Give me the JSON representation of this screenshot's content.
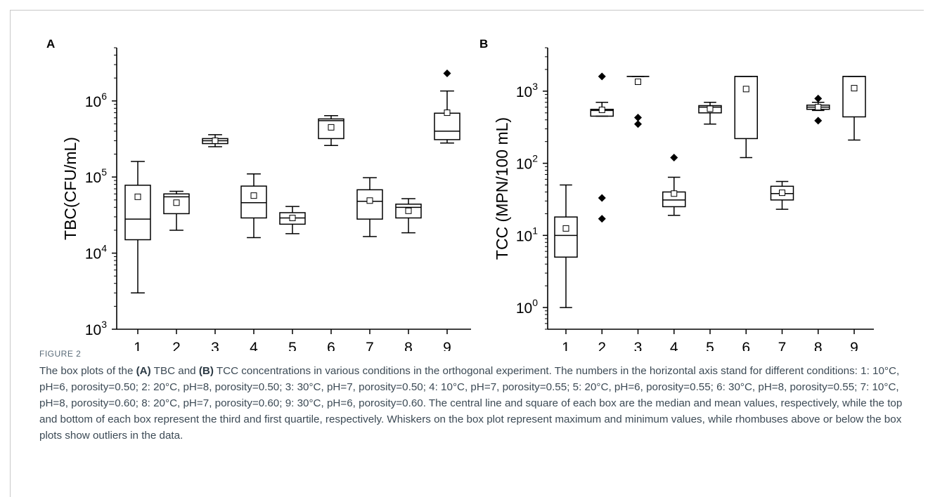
{
  "figure_label": "FIGURE 2",
  "caption": {
    "part1": "The box plots of the ",
    "bold_a": "(A)",
    "part2": " TBC and ",
    "bold_b": "(B)",
    "part3": " TCC concentrations in various conditions in the orthogonal experiment. The numbers in the horizontal axis stand for different conditions: 1: 10°C, pH=6, porosity=0.50; 2: 20°C, pH=8, porosity=0.50; 3: 30°C, pH=7, porosity=0.50; 4: 10°C, pH=7, porosity=0.55; 5: 20°C, pH=6, porosity=0.55; 6: 30°C, pH=8, porosity=0.55; 7: 10°C, pH=8, porosity=0.60; 8: 20°C, pH=7, porosity=0.60; 9: 30°C, pH=6, porosity=0.60. The central line and square of each box are the median and mean values, respectively, while the top and bottom of each box represent the third and first quartile, respectively. Whiskers on the box plot represent maximum and minimum values, while rhombuses above or below the box plots show outliers in the data."
  },
  "chart_data": [
    {
      "type": "box",
      "panel": "A",
      "ylabel": "TBC(CFU/mL)",
      "xlabel": "",
      "yscale": "log",
      "ylim": [
        1000,
        5000000
      ],
      "ytick_exponents": [
        3,
        4,
        5,
        6
      ],
      "categories": [
        "1",
        "2",
        "3",
        "4",
        "5",
        "6",
        "7",
        "8",
        "9"
      ],
      "boxes": [
        {
          "min": 3000,
          "q1": 15000,
          "median": 28000,
          "q3": 78000,
          "max": 160000,
          "mean": 55000,
          "outliers": []
        },
        {
          "min": 20000,
          "q1": 33000,
          "median": 55000,
          "q3": 60000,
          "max": 65000,
          "mean": 46000,
          "outliers": []
        },
        {
          "min": 250000,
          "q1": 275000,
          "median": 300000,
          "q3": 320000,
          "max": 360000,
          "mean": 300000,
          "outliers": []
        },
        {
          "min": 16000,
          "q1": 29000,
          "median": 46000,
          "q3": 76000,
          "max": 110000,
          "mean": 57000,
          "outliers": []
        },
        {
          "min": 18000,
          "q1": 24000,
          "median": 29000,
          "q3": 34000,
          "max": 41000,
          "mean": 29000,
          "outliers": []
        },
        {
          "min": 260000,
          "q1": 320000,
          "median": 550000,
          "q3": 580000,
          "max": 640000,
          "mean": 450000,
          "outliers": []
        },
        {
          "min": 16500,
          "q1": 28000,
          "median": 48000,
          "q3": 68000,
          "max": 98000,
          "mean": 49000,
          "outliers": []
        },
        {
          "min": 18500,
          "q1": 29000,
          "median": 40000,
          "q3": 44000,
          "max": 52000,
          "mean": 36000,
          "outliers": []
        },
        {
          "min": 280000,
          "q1": 310000,
          "median": 400000,
          "q3": 690000,
          "max": 1350000,
          "mean": 700000,
          "outliers": [
            2300000
          ]
        }
      ]
    },
    {
      "type": "box",
      "panel": "B",
      "ylabel": "TCC (MPN/100 mL)",
      "xlabel": "",
      "yscale": "log",
      "ylim": [
        0.5,
        4000
      ],
      "ytick_exponents": [
        0,
        1,
        2,
        3
      ],
      "categories": [
        "1",
        "2",
        "3",
        "4",
        "5",
        "6",
        "7",
        "8",
        "9"
      ],
      "boxes": [
        {
          "min": 1,
          "q1": 5,
          "median": 10,
          "q3": 18,
          "max": 50,
          "mean": 12.5,
          "outliers": []
        },
        {
          "min": 450,
          "q1": 450,
          "median": 540,
          "q3": 560,
          "max": 700,
          "mean": 550,
          "outliers": [
            1600,
            33,
            17
          ]
        },
        {
          "min": 1600,
          "q1": 1600,
          "median": 1600,
          "q3": 1600,
          "max": 1600,
          "mean": 1350,
          "outliers": [
            430,
            350
          ]
        },
        {
          "min": 19,
          "q1": 25,
          "median": 31,
          "q3": 40,
          "max": 64,
          "mean": 38,
          "outliers": [
            120
          ]
        },
        {
          "min": 350,
          "q1": 500,
          "median": 600,
          "q3": 630,
          "max": 700,
          "mean": 570,
          "outliers": []
        },
        {
          "min": 120,
          "q1": 220,
          "median": 1600,
          "q3": 1600,
          "max": 1600,
          "mean": 1070,
          "outliers": []
        },
        {
          "min": 23,
          "q1": 31,
          "median": 38,
          "q3": 48,
          "max": 56,
          "mean": 39,
          "outliers": []
        },
        {
          "min": 540,
          "q1": 560,
          "median": 600,
          "q3": 640,
          "max": 700,
          "mean": 600,
          "outliers": [
            790,
            390
          ]
        },
        {
          "min": 210,
          "q1": 440,
          "median": 1600,
          "q3": 1600,
          "max": 1600,
          "mean": 1100,
          "outliers": []
        }
      ]
    }
  ]
}
